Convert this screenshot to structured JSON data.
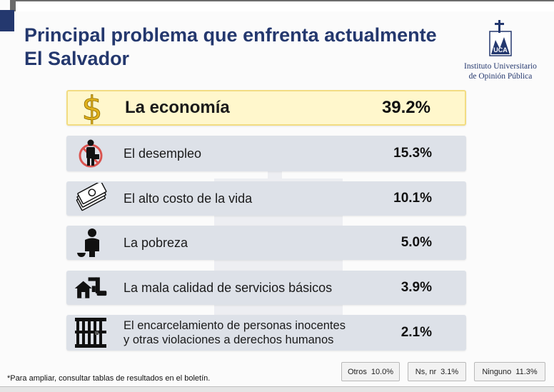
{
  "header": {
    "title_line1": "Principal problema que enfrenta actualmente",
    "title_line2": "El Salvador"
  },
  "logo": {
    "line1": "Instituto Universitario",
    "line2": "de Opinión Pública"
  },
  "chart_data": {
    "type": "table",
    "categories": [
      "La economía",
      "El desempleo",
      "El alto costo de la vida",
      "La pobreza",
      "La mala calidad de servicios básicos",
      "El encarcelamiento de personas inocentes y otras violaciones a derechos humanos"
    ],
    "values": [
      39.2,
      15.3,
      10.1,
      5.0,
      3.9,
      2.1
    ],
    "rows": [
      {
        "label": "La economía",
        "value_text": "39.2%",
        "icon": "dollar-sign-icon"
      },
      {
        "label": "El desempleo",
        "value_text": "15.3%",
        "icon": "no-worker-icon"
      },
      {
        "label": "El alto costo de la vida",
        "value_text": "10.1%",
        "icon": "banknotes-icon"
      },
      {
        "label": "La pobreza",
        "value_text": "5.0%",
        "icon": "sitting-person-bowl-icon"
      },
      {
        "label": "La mala calidad de servicios básicos",
        "value_text": "3.9%",
        "icon": "house-pipe-icon"
      },
      {
        "label_line1": "El encarcelamiento de personas inocentes",
        "label_line2": "y otras violaciones a derechos humanos",
        "value_text": "2.1%",
        "icon": "prison-bars-icon"
      }
    ],
    "extras": [
      {
        "label": "Otros",
        "value_text": "10.0%"
      },
      {
        "label": "Ns, nr",
        "value_text": "3.1%"
      },
      {
        "label": "Ninguno",
        "value_text": "11.3%"
      }
    ],
    "highlight_color": "#fff7cc",
    "row_color": "#dde1e8"
  },
  "footnote": "*Para ampliar, consultar tablas de resultados en el boletín.",
  "colors": {
    "title": "#24386e",
    "accent": "#24386e",
    "icon_gold": "#e0b11c"
  }
}
